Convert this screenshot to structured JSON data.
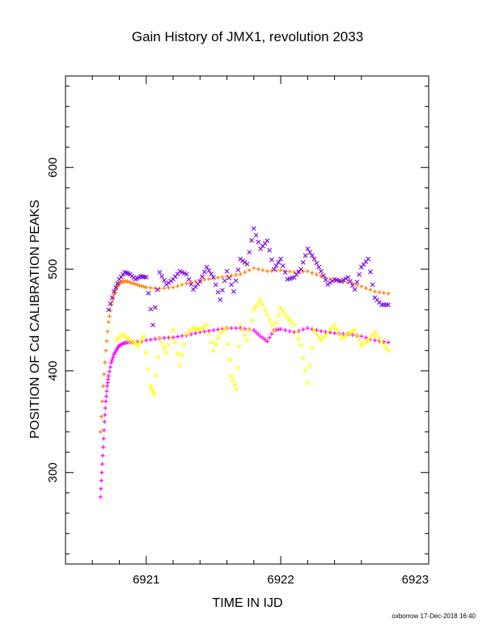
{
  "chart_data": {
    "type": "scatter",
    "title": "Gain History of JMX1, revolution 2033",
    "xlabel": "TIME IN IJD",
    "ylabel": "POSITION OF Cd CALIBRATION PEAKS",
    "xlim": [
      6920.4,
      6923.1
    ],
    "ylim": [
      210,
      690
    ],
    "xticks": [
      6921,
      6922,
      6923
    ],
    "yticks": [
      300,
      400,
      500,
      600
    ],
    "xtick_labels": [
      "6921",
      "6922",
      "6923"
    ],
    "ytick_labels": [
      "300",
      "400",
      "500",
      "600"
    ],
    "grid": false,
    "colors": {
      "orange": "#ff7f00",
      "purple": "#7a00e6",
      "magenta": "#ff00ff",
      "yellow": "#ffff00"
    },
    "series": [
      {
        "marker": "+",
        "color": "#ff7f00",
        "x": [
          6920.66,
          6920.68,
          6920.7,
          6920.72,
          6920.74,
          6920.76,
          6920.78,
          6920.8,
          6920.83,
          6920.86,
          6920.9,
          6920.95,
          6921.0,
          6921.1,
          6921.2,
          6921.3,
          6921.4,
          6921.5,
          6921.6,
          6921.7,
          6921.8,
          6921.9,
          6922.0,
          6922.1,
          6922.2,
          6922.3,
          6922.4,
          6922.5,
          6922.6,
          6922.7,
          6922.8
        ],
        "y": [
          340,
          385,
          420,
          448,
          465,
          475,
          482,
          486,
          488,
          488,
          486,
          484,
          482,
          481,
          482,
          486,
          489,
          491,
          493,
          495,
          501,
          498,
          499,
          497,
          498,
          493,
          489,
          487,
          483,
          478,
          476
        ]
      },
      {
        "marker": "×",
        "color": "#7a00e6",
        "x": [
          6920.72,
          6920.76,
          6920.8,
          6920.84,
          6920.88,
          6920.92,
          6920.96,
          6921.0,
          6921.05,
          6921.1,
          6921.15,
          6921.2,
          6921.25,
          6921.3,
          6921.35,
          6921.4,
          6921.45,
          6921.5,
          6921.55,
          6921.6,
          6921.65,
          6921.7,
          6921.75,
          6921.8,
          6921.85,
          6921.9,
          6921.95,
          6922.0,
          6922.05,
          6922.1,
          6922.15,
          6922.2,
          6922.25,
          6922.3,
          6922.35,
          6922.4,
          6922.45,
          6922.5,
          6922.55,
          6922.6,
          6922.65,
          6922.7,
          6922.75,
          6922.8
        ],
        "y": [
          460,
          478,
          490,
          497,
          495,
          490,
          493,
          492,
          445,
          497,
          485,
          490,
          498,
          495,
          480,
          488,
          502,
          492,
          470,
          498,
          478,
          510,
          505,
          540,
          520,
          528,
          500,
          510,
          490,
          492,
          500,
          520,
          510,
          498,
          485,
          490,
          488,
          492,
          480,
          502,
          510,
          472,
          465,
          465
        ]
      },
      {
        "marker": "+",
        "color": "#ff00ff",
        "x": [
          6920.66,
          6920.67,
          6920.68,
          6920.69,
          6920.7,
          6920.71,
          6920.72,
          6920.74,
          6920.76,
          6920.78,
          6920.8,
          6920.83,
          6920.86,
          6920.9,
          6921.0,
          6921.1,
          6921.2,
          6921.3,
          6921.4,
          6921.5,
          6921.6,
          6921.7,
          6921.8,
          6921.85,
          6921.9,
          6921.95,
          6922.0,
          6922.1,
          6922.2,
          6922.3,
          6922.4,
          6922.5,
          6922.6,
          6922.7,
          6922.8
        ],
        "y": [
          276,
          300,
          325,
          350,
          370,
          385,
          395,
          408,
          416,
          421,
          425,
          427,
          428,
          428,
          430,
          432,
          433,
          435,
          438,
          440,
          442,
          442,
          440,
          434,
          429,
          440,
          441,
          438,
          442,
          439,
          437,
          436,
          434,
          430,
          428
        ]
      },
      {
        "marker": "×",
        "color": "#ffff00",
        "x": [
          6920.78,
          6920.82,
          6920.86,
          6920.9,
          6920.94,
          6920.98,
          6921.03,
          6921.06,
          6921.1,
          6921.15,
          6921.2,
          6921.25,
          6921.3,
          6921.35,
          6921.4,
          6921.45,
          6921.5,
          6921.55,
          6921.6,
          6921.63,
          6921.67,
          6921.7,
          6921.75,
          6921.8,
          6921.85,
          6921.9,
          6921.95,
          6922.0,
          6922.05,
          6922.1,
          6922.15,
          6922.2,
          6922.25,
          6922.3,
          6922.35,
          6922.4,
          6922.45,
          6922.5,
          6922.55,
          6922.6,
          6922.65,
          6922.7,
          6922.75,
          6922.8
        ],
        "y": [
          430,
          436,
          432,
          428,
          425,
          434,
          385,
          377,
          432,
          418,
          440,
          405,
          436,
          442,
          440,
          445,
          420,
          438,
          442,
          395,
          382,
          445,
          430,
          460,
          470,
          455,
          440,
          462,
          452,
          445,
          425,
          388,
          440,
          430,
          438,
          445,
          432,
          436,
          440,
          425,
          430,
          438,
          428,
          420
        ]
      }
    ]
  },
  "footer": {
    "credit": "oxborrow 17-Dec-2018 16:40"
  }
}
